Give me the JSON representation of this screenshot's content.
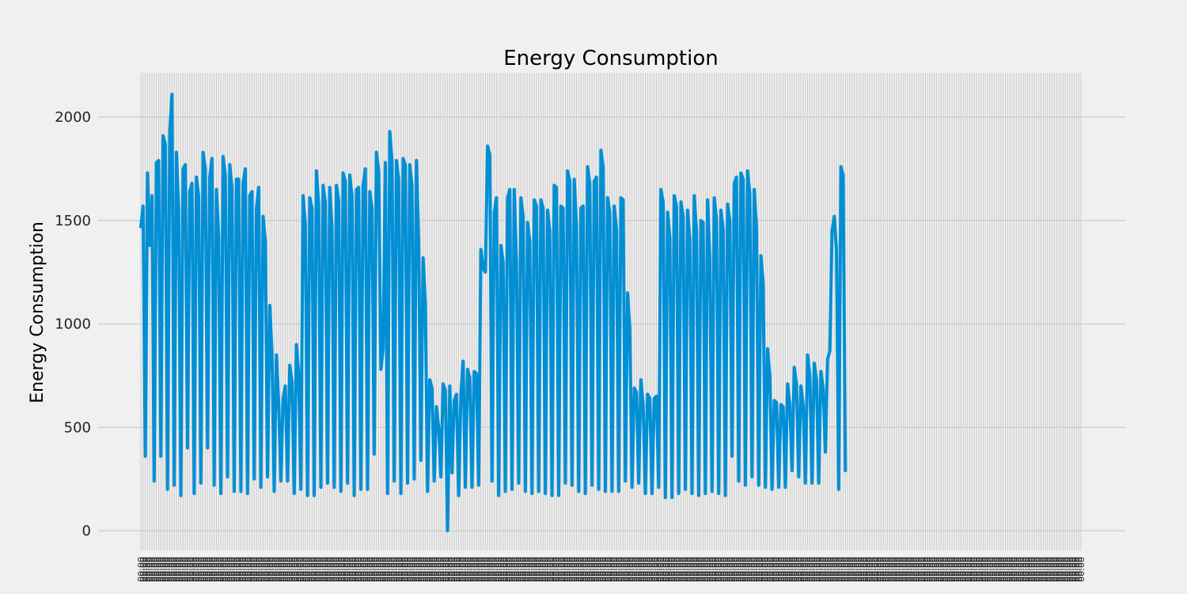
{
  "chart_data": {
    "type": "line",
    "title": "Energy Consumption",
    "xlabel": "",
    "ylabel": "Energy Consumption",
    "ylim": [
      -95,
      2215
    ],
    "yticks": [
      0,
      500,
      1000,
      1500,
      2000
    ],
    "grid": true,
    "line_color": "#008fd5",
    "background_color": "#f0f0f0",
    "grid_color": "#cbcbcb",
    "x_tick_label": "00:00",
    "x_count": 424,
    "series": [
      {
        "values": [
          1470,
          1570,
          360,
          1730,
          1380,
          1620,
          240,
          1780,
          1790,
          360,
          1910,
          1870,
          200,
          1930,
          2110,
          220,
          1830,
          1560,
          170,
          1750,
          1770,
          400,
          1640,
          1680,
          180,
          1710,
          1620,
          230,
          1830,
          1750,
          400,
          1710,
          1800,
          220,
          1650,
          1430,
          180,
          1810,
          1720,
          260,
          1770,
          1660,
          190,
          1700,
          1700,
          190,
          1680,
          1750,
          180,
          1620,
          1640,
          250,
          1560,
          1660,
          210,
          1520,
          1400,
          260,
          1090,
          860,
          190,
          850,
          620,
          240,
          640,
          700,
          240,
          800,
          720,
          180,
          900,
          760,
          200,
          1620,
          1480,
          170,
          1610,
          1560,
          170,
          1740,
          1580,
          210,
          1670,
          1590,
          230,
          1660,
          1470,
          210,
          1670,
          1600,
          190,
          1730,
          1690,
          230,
          1720,
          1620,
          170,
          1650,
          1660,
          200,
          1670,
          1750,
          200,
          1640,
          1560,
          370,
          1830,
          1740,
          780,
          880,
          1780,
          180,
          1930,
          1790,
          240,
          1790,
          1700,
          180,
          1800,
          1770,
          230,
          1770,
          1670,
          250,
          1790,
          1400,
          340,
          1320,
          1100,
          190,
          730,
          690,
          240,
          600,
          500,
          260,
          710,
          680,
          0,
          700,
          280,
          630,
          660,
          170,
          660,
          820,
          210,
          780,
          740,
          210,
          770,
          760,
          220,
          1360,
          1270,
          1250,
          1860,
          1820,
          240,
          1540,
          1610,
          170,
          1380,
          1300,
          190,
          1610,
          1650,
          200,
          1650,
          1300,
          230,
          1610,
          1520,
          190,
          1490,
          1400,
          180,
          1600,
          1570,
          190,
          1600,
          1560,
          180,
          1550,
          1450,
          170,
          1670,
          1660,
          170,
          1570,
          1560,
          230,
          1740,
          1690,
          220,
          1700,
          1480,
          190,
          1560,
          1570,
          180,
          1760,
          1680,
          220,
          1690,
          1710,
          200,
          1840,
          1760,
          190,
          1610,
          1540,
          190,
          1570,
          1460,
          190,
          1610,
          1600,
          240,
          1150,
          980,
          210,
          690,
          670,
          230,
          730,
          610,
          180,
          660,
          640,
          180,
          640,
          650,
          210,
          1650,
          1590,
          160,
          1540,
          1420,
          160,
          1620,
          1570,
          180,
          1590,
          1520,
          200,
          1550,
          1410,
          180,
          1620,
          1450,
          170,
          1500,
          1490,
          180,
          1600,
          1320,
          190,
          1610,
          1510,
          180,
          1550,
          1460,
          170,
          1580,
          1500,
          360,
          1680,
          1710,
          240,
          1730,
          1700,
          220,
          1740,
          1630,
          260,
          1650,
          1470,
          220,
          1330,
          1200,
          210,
          880,
          750,
          200,
          630,
          620,
          210,
          610,
          600,
          210,
          710,
          610,
          290,
          790,
          710,
          260,
          700,
          610,
          230,
          850,
          750,
          230,
          810,
          730,
          230,
          770,
          690,
          380,
          830,
          870,
          1450,
          1520,
          1360,
          200,
          1760,
          1720,
          290
        ]
      }
    ]
  }
}
